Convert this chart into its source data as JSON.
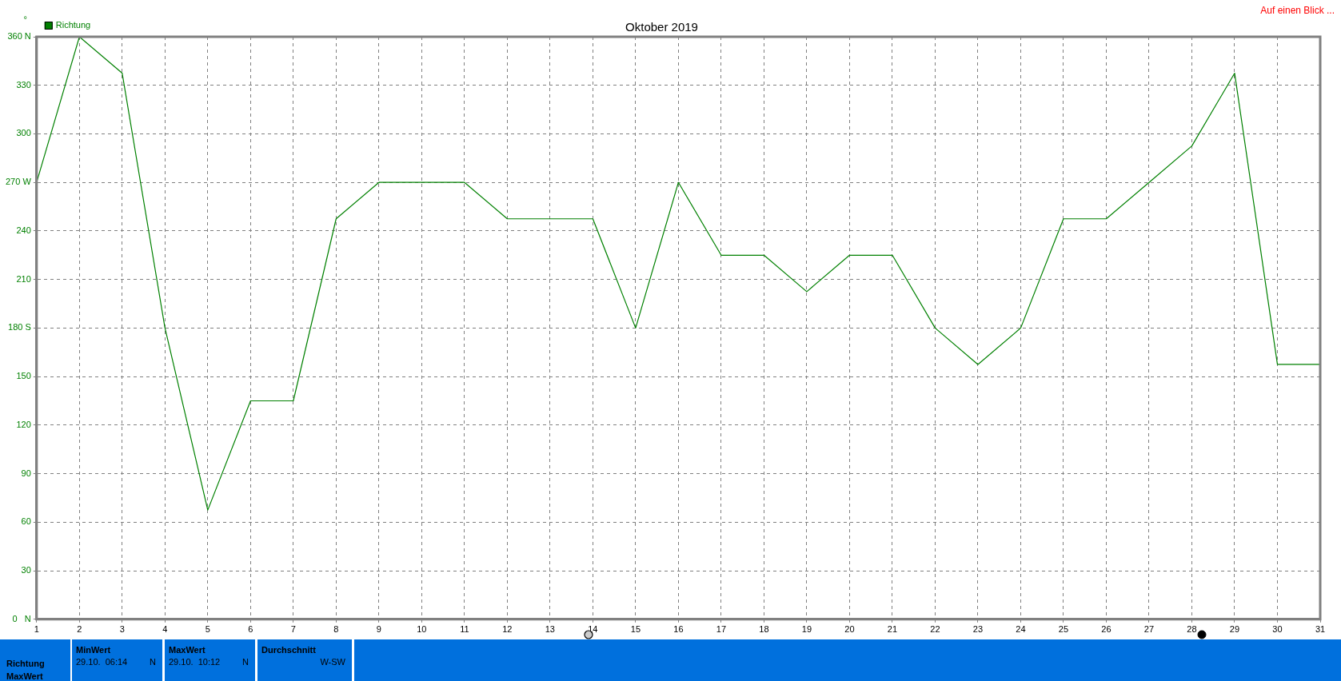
{
  "chart_data": {
    "type": "line",
    "title": "Oktober 2019",
    "ylabel": "°",
    "x": [
      1,
      2,
      3,
      4,
      5,
      6,
      7,
      8,
      9,
      10,
      11,
      12,
      13,
      14,
      15,
      16,
      17,
      18,
      19,
      20,
      21,
      22,
      23,
      24,
      25,
      26,
      27,
      28,
      29,
      30,
      31
    ],
    "series": [
      {
        "name": "Richtung",
        "color": "#008000",
        "values": [
          270,
          360,
          337.5,
          180,
          67.5,
          135,
          135,
          247.5,
          270,
          270,
          270,
          247.5,
          247.5,
          247.5,
          180,
          270,
          225,
          225,
          202.5,
          225,
          225,
          180,
          157.5,
          180,
          247.5,
          247.5,
          270,
          292.5,
          337.5,
          157.5,
          157.5
        ]
      }
    ],
    "xlim": [
      1,
      31
    ],
    "xticks": [
      1,
      2,
      3,
      4,
      5,
      6,
      7,
      8,
      9,
      10,
      11,
      12,
      13,
      14,
      15,
      16,
      17,
      18,
      19,
      20,
      21,
      22,
      23,
      24,
      25,
      26,
      27,
      28,
      29,
      30,
      31
    ],
    "ylim": [
      0,
      360
    ],
    "yticks": [
      {
        "value": 0,
        "label": "0   N"
      },
      30,
      60,
      90,
      120,
      150,
      {
        "value": 180,
        "label": "180 S"
      },
      210,
      240,
      {
        "value": 270,
        "label": "270 W"
      },
      300,
      330,
      {
        "value": 360,
        "label": "360 N"
      }
    ],
    "grid": true,
    "legend": "top left",
    "marker": "none",
    "line_style": "solid",
    "annotations": [
      "Auf einen Blick ...",
      "Richtung",
      "MaxWert",
      "MinWert",
      "29.10.  06:14",
      "N",
      "MaxWert",
      "29.10.  10:12",
      "N",
      "Durchschnitt",
      "W-SW"
    ]
  }
}
